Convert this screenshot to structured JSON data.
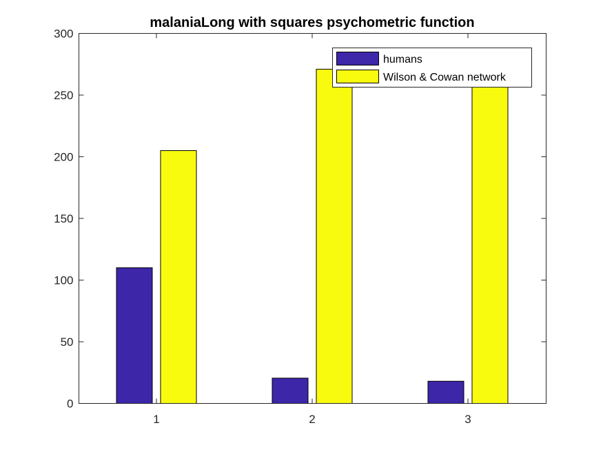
{
  "chart_data": {
    "type": "bar",
    "title": "malaniaLong with squares psychometric function",
    "xlabel": "",
    "ylabel": "",
    "categories": [
      "1",
      "2",
      "3"
    ],
    "series": [
      {
        "name": "humans",
        "color": "#3e26a8",
        "values": [
          110,
          20.5,
          18
        ]
      },
      {
        "name": "Wilson & Cowan network",
        "color": "#f9fb0e",
        "values": [
          205,
          271,
          271
        ]
      }
    ],
    "ylim": [
      0,
      300
    ],
    "yticks": [
      0,
      50,
      100,
      150,
      200,
      250,
      300
    ],
    "grid": false,
    "legend_position": "top-right"
  }
}
